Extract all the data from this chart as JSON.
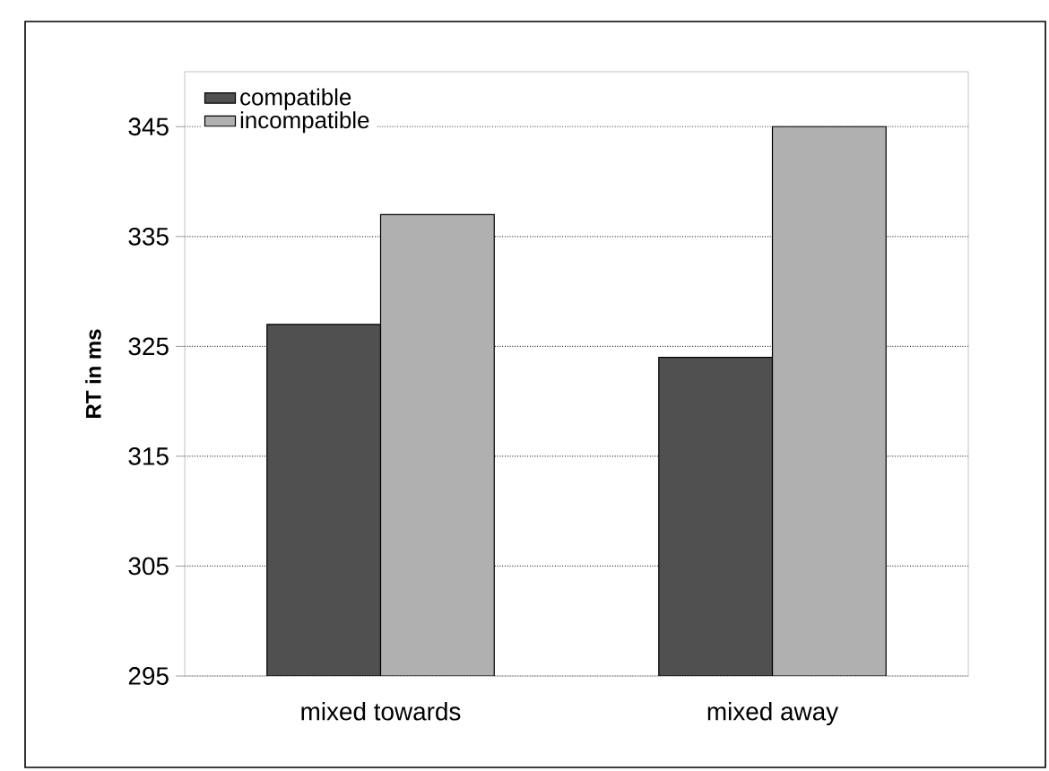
{
  "chart_data": {
    "type": "bar",
    "ylabel": "RT in ms",
    "categories": [
      "mixed towards",
      "mixed away"
    ],
    "series": [
      {
        "name": "compatible",
        "color": "#505050",
        "values": [
          327,
          324
        ]
      },
      {
        "name": "incompatible",
        "color": "#b0b0b0",
        "values": [
          337,
          345
        ]
      }
    ],
    "ylim": [
      295,
      350
    ],
    "yticks": [
      295,
      305,
      315,
      325,
      335,
      345
    ],
    "grid": "y",
    "legend": "top left"
  }
}
